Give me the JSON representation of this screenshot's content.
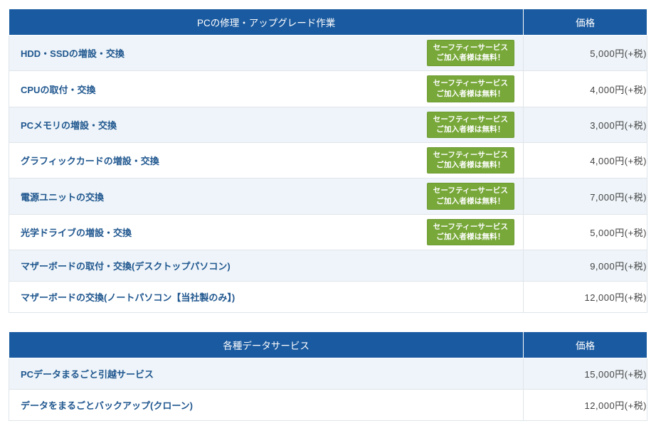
{
  "colors": {
    "header_bg": "#1a5aa0",
    "header_text": "#ffffff",
    "row_even_bg": "#eef4f9",
    "row_odd_bg": "#ffffff",
    "service_text": "#20578f",
    "price_text": "#444444",
    "border": "#e0e5ea",
    "badge_bg": "#78a83a",
    "badge_border": "#6d9a33"
  },
  "badge": {
    "line1": "セーフティーサービス",
    "line2": "ご加入者様は無料！"
  },
  "tables": [
    {
      "headers": {
        "service": "PCの修理・アップグレード作業",
        "price": "価格"
      },
      "rows": [
        {
          "label": "HDD・SSDの増設・交換",
          "badge": true,
          "price": "5,000円(+税)"
        },
        {
          "label": "CPUの取付・交換",
          "badge": true,
          "price": "4,000円(+税)"
        },
        {
          "label": "PCメモリの増設・交換",
          "badge": true,
          "price": "3,000円(+税)"
        },
        {
          "label": "グラフィックカードの増設・交換",
          "badge": true,
          "price": "4,000円(+税)"
        },
        {
          "label": "電源ユニットの交換",
          "badge": true,
          "price": "7,000円(+税)"
        },
        {
          "label": "光学ドライブの増設・交換",
          "badge": true,
          "price": "5,000円(+税)"
        },
        {
          "label": "マザーボードの取付・交換(デスクトップパソコン)",
          "badge": false,
          "price": "9,000円(+税)"
        },
        {
          "label": "マザーボードの交換(ノートパソコン【当社製のみ】)",
          "badge": false,
          "price": "12,000円(+税)"
        }
      ]
    },
    {
      "headers": {
        "service": "各種データサービス",
        "price": "価格"
      },
      "rows": [
        {
          "label": "PCデータまるごと引越サービス",
          "badge": false,
          "price": "15,000円(+税)"
        },
        {
          "label": "データをまるごとバックアップ(クローン)",
          "badge": false,
          "price": "12,000円(+税)"
        }
      ]
    }
  ]
}
